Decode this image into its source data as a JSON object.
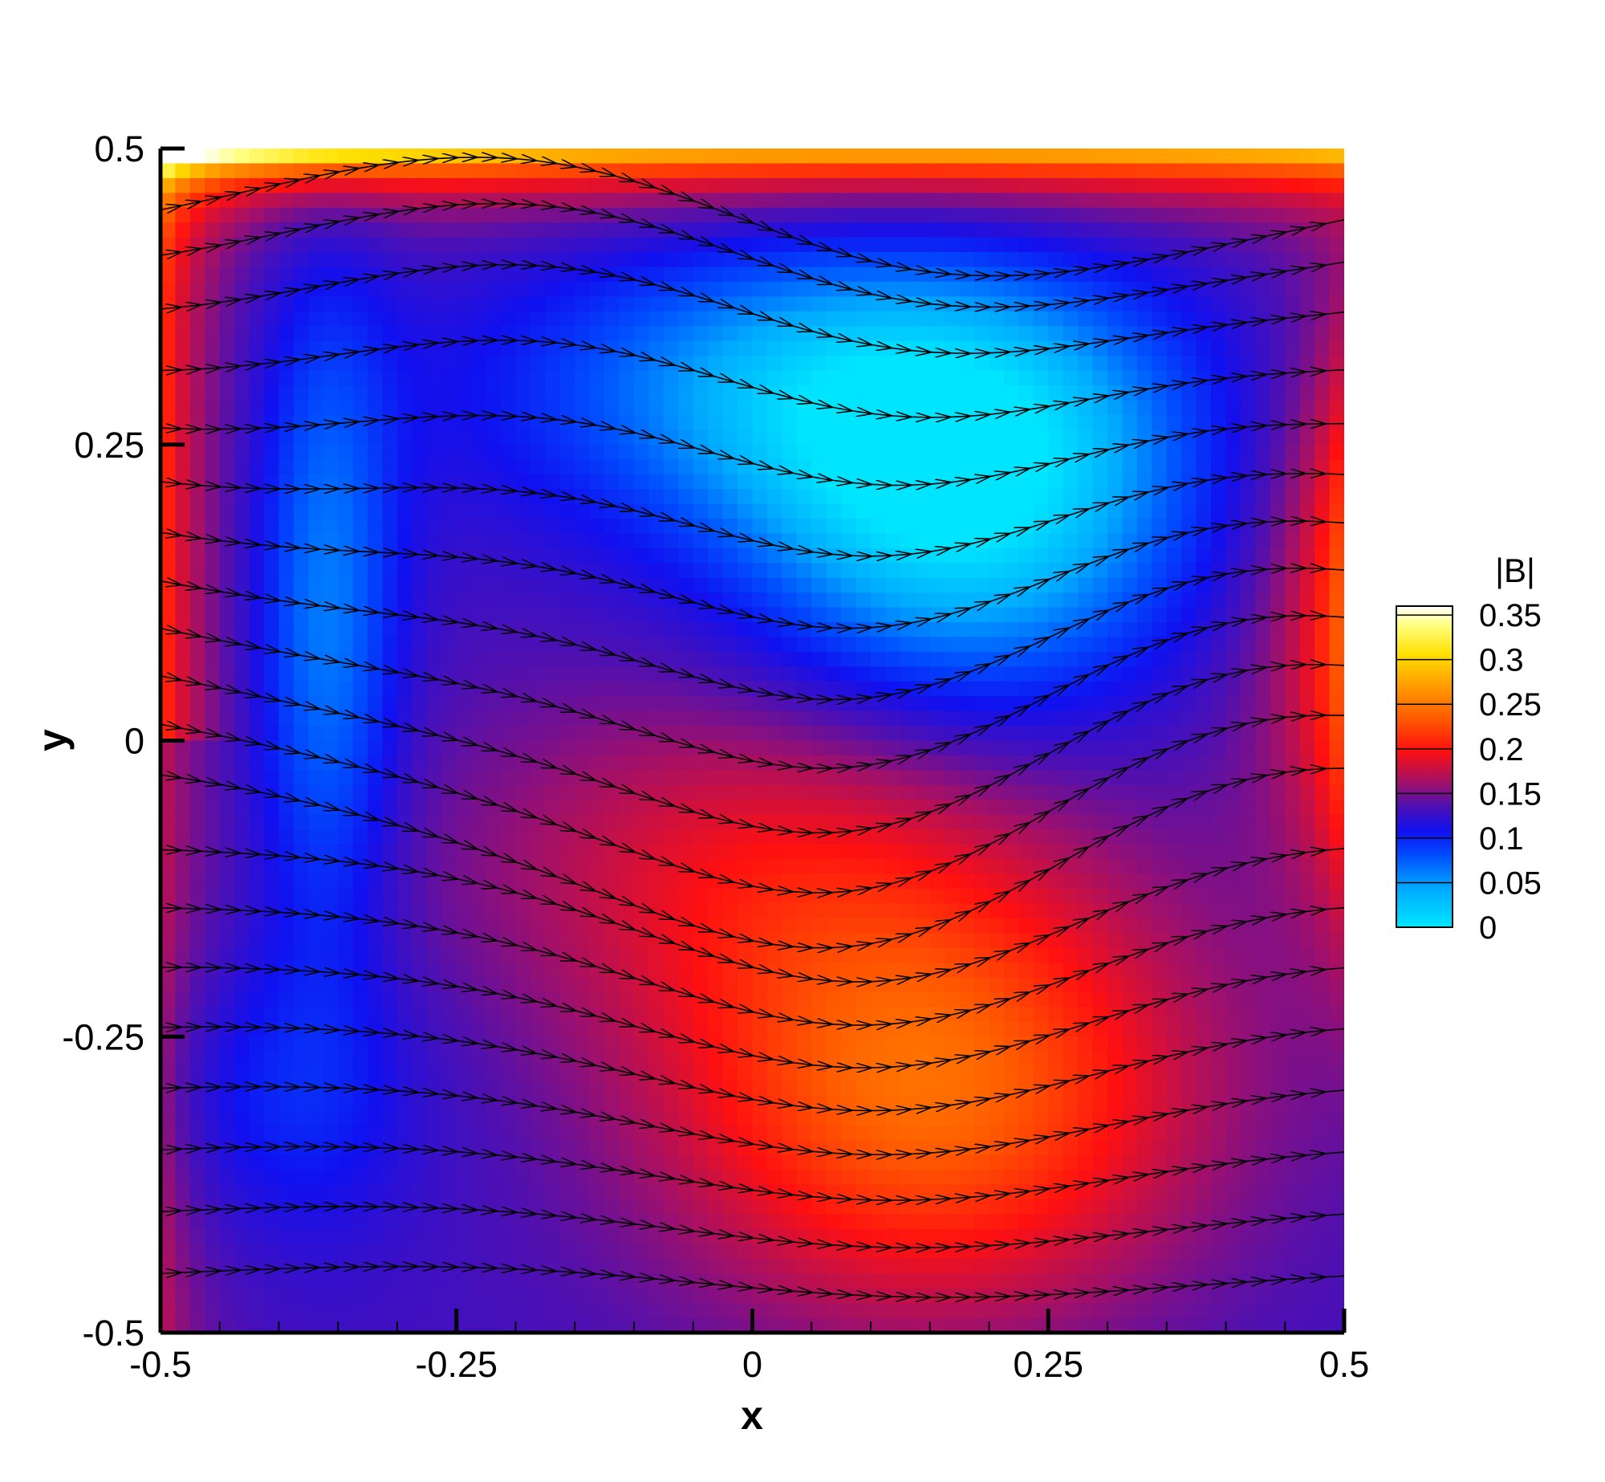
{
  "chart_data": {
    "type": "heatmap",
    "title": "",
    "xlabel": "x",
    "ylabel": "y",
    "xlim": [
      -0.5,
      0.5
    ],
    "ylim": [
      -0.5,
      0.5
    ],
    "x_ticks": [
      "-0.5",
      "-0.25",
      "0",
      "0.25",
      "0.5"
    ],
    "y_ticks": [
      "-0.5",
      "-0.25",
      "0",
      "0.25",
      "0.5"
    ],
    "colorbar": {
      "title": "|B|",
      "min": 0,
      "max": 0.36,
      "labels": [
        "0.35",
        "0.3",
        "0.25",
        "0.2",
        "0.15",
        "0.1",
        "0.05",
        "0"
      ],
      "placement": "right"
    },
    "field_features": [
      {
        "region": "top-left corner along top boundary",
        "x": -0.45,
        "y": 0.49,
        "value": 0.34
      },
      {
        "region": "top boundary strip",
        "x": -0.2,
        "y": 0.48,
        "value": 0.27
      },
      {
        "region": "left boundary strip",
        "x": -0.48,
        "y": 0.35,
        "value": 0.22
      },
      {
        "region": "right boundary strip",
        "x": 0.49,
        "y": 0.15,
        "value": 0.24
      },
      {
        "region": "upper-right low pocket",
        "x": 0.2,
        "y": 0.2,
        "value": 0.01
      },
      {
        "region": "left vertical low column",
        "x": -0.37,
        "y": 0.1,
        "value": 0.06
      },
      {
        "region": "lower-center high zone",
        "x": 0.12,
        "y": -0.3,
        "value": 0.2
      },
      {
        "region": "lower-left",
        "x": -0.45,
        "y": -0.35,
        "value": 0.11
      }
    ],
    "streamlines": "black field lines with arrowheads, flowing left to right",
    "grid": false
  }
}
